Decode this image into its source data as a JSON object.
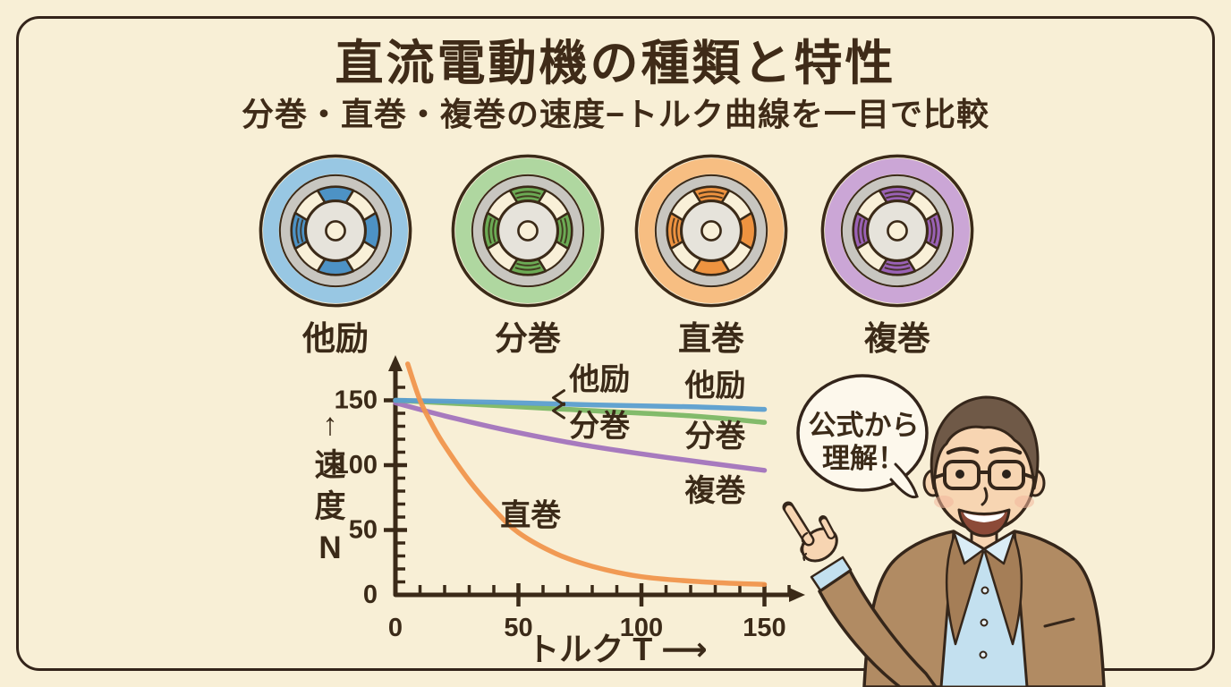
{
  "title": "直流電動機の種類と特性",
  "subtitle": "分巻・直巻・複巻の速度−トルク曲線を一目で比較",
  "palette": {
    "ink": "#3b2a18",
    "background": "#f8efd6",
    "bubble_fill": "#fdf8ec",
    "silver": "#c8c6c0",
    "rotor_gray": "#e6e3db",
    "cream": "#f9f0d8"
  },
  "motors": [
    {
      "label": "他励",
      "ring_color": "#8fc3e4",
      "pole_color": "#4d92c5",
      "poles": {
        "top": "solid",
        "right": "solid",
        "bottom": "solid",
        "left": "coil"
      }
    },
    {
      "label": "分巻",
      "ring_color": "#a8d59b",
      "pole_color": "#6cab55",
      "poles": {
        "top": "coil",
        "right": "coil",
        "bottom": "coil",
        "left": "coil"
      }
    },
    {
      "label": "直巻",
      "ring_color": "#f6ba7b",
      "pole_color": "#ee9340",
      "poles": {
        "top": "coil",
        "right": "solid",
        "bottom": "solid",
        "left": "coil"
      }
    },
    {
      "label": "複巻",
      "ring_color": "#c79fd6",
      "pole_color": "#9a62b6",
      "poles": {
        "top": "coil",
        "right": "coil",
        "bottom": "coil",
        "left": "coil"
      }
    }
  ],
  "chart_data": {
    "type": "line",
    "title": "",
    "xlabel": "トルク T ⟶",
    "ylabel": "速度 N",
    "ylabel_chars": [
      "↑",
      "速",
      "度",
      "N"
    ],
    "xlim": [
      0,
      165
    ],
    "ylim": [
      0,
      180
    ],
    "x_ticks": [
      0,
      50,
      100,
      150
    ],
    "y_ticks": [
      150,
      100,
      50,
      0
    ],
    "minor_tick_step": 10,
    "grid": false,
    "legend": "inline-annotations",
    "series": [
      {
        "name": "複巻",
        "color": "#a273bd",
        "points": [
          [
            0,
            148
          ],
          [
            20,
            138
          ],
          [
            45,
            127
          ],
          [
            75,
            116
          ],
          [
            110,
            106
          ],
          [
            150,
            96
          ]
        ]
      },
      {
        "name": "分巻",
        "color": "#7cb765",
        "points": [
          [
            0,
            150
          ],
          [
            40,
            146
          ],
          [
            80,
            142
          ],
          [
            120,
            138
          ],
          [
            150,
            133
          ]
        ]
      },
      {
        "name": "他励",
        "color": "#5b9ed0",
        "points": [
          [
            0,
            150
          ],
          [
            40,
            148.5
          ],
          [
            80,
            146.5
          ],
          [
            120,
            145
          ],
          [
            150,
            143
          ]
        ]
      },
      {
        "name": "直巻",
        "color": "#f0954d",
        "points": [
          [
            5,
            178
          ],
          [
            10,
            150
          ],
          [
            15,
            131
          ],
          [
            20,
            115
          ],
          [
            30,
            88
          ],
          [
            40,
            66
          ],
          [
            50,
            48
          ],
          [
            65,
            32
          ],
          [
            80,
            22
          ],
          [
            100,
            14
          ],
          [
            125,
            10
          ],
          [
            150,
            8
          ]
        ]
      }
    ],
    "annotations": [
      {
        "text": "他励",
        "t": 83,
        "n": 166
      },
      {
        "text": "分巻",
        "t": 83,
        "n": 130
      },
      {
        "caret": true,
        "t": 66,
        "n": 152
      },
      {
        "caret": true,
        "t": 66,
        "n": 142
      },
      {
        "text": "他励",
        "t": 130,
        "n": 161
      },
      {
        "text": "分巻",
        "t": 130,
        "n": 122
      },
      {
        "text": "複巻",
        "t": 130,
        "n": 80
      },
      {
        "text": "直巻",
        "t": 55,
        "n": 61
      }
    ]
  },
  "speech_bubble": {
    "lines": [
      "公式から",
      "理解！"
    ]
  },
  "person": {
    "colors": {
      "jacket": "#b18b63",
      "jacket_dark": "#a57e57",
      "shirt": "#c3e0ef",
      "shirt_light": "#daedf6",
      "skin": "#f7d5b2",
      "hair": "#6f5947",
      "mouth": "#8c4a38"
    }
  }
}
